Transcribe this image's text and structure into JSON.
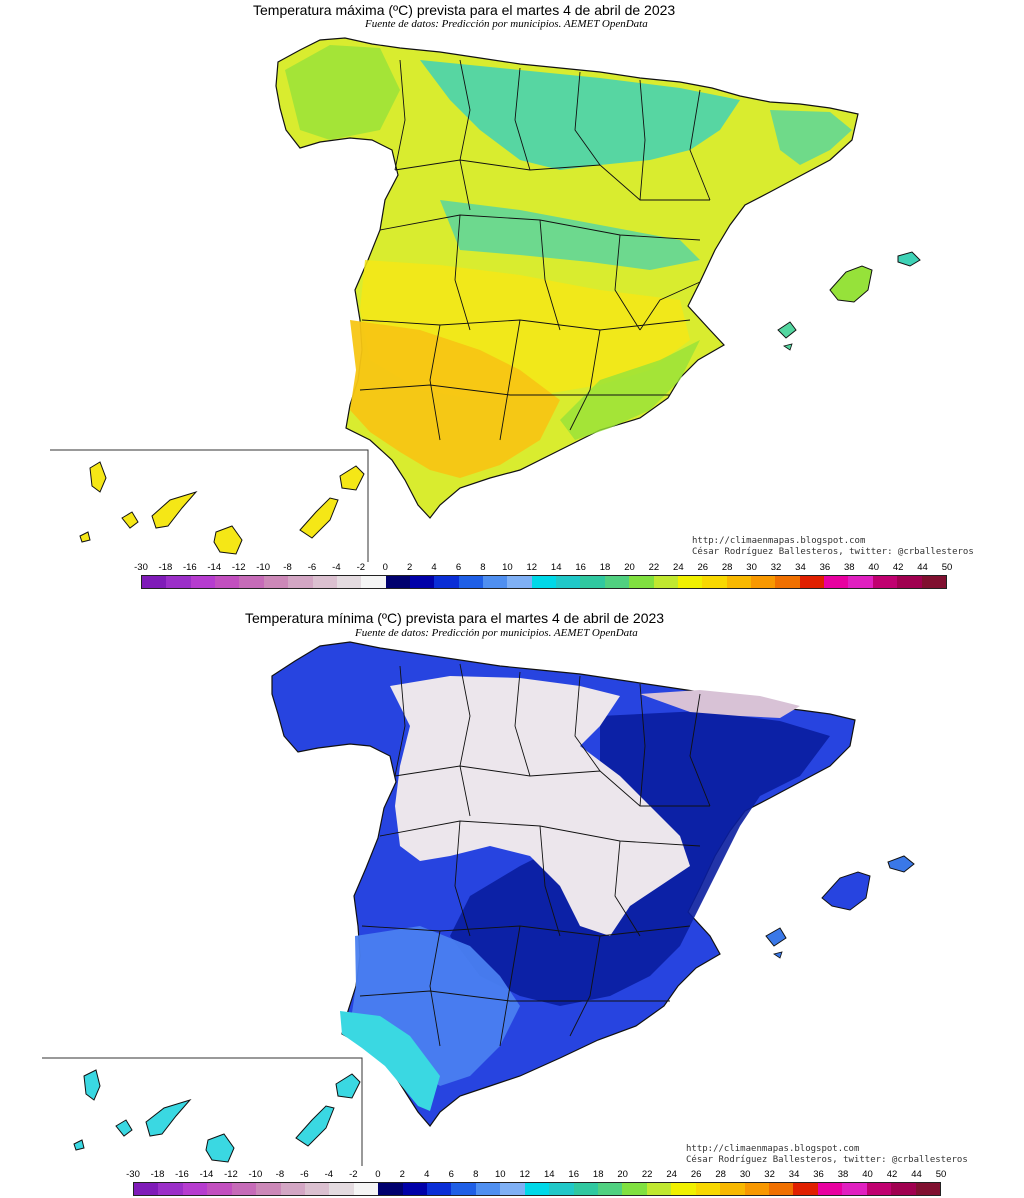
{
  "max_map": {
    "title": "Temperatura máxima (ºC) prevista para el martes 4 de abril de 2023",
    "source": "Fuente de datos: Predicción por municipios. AEMET OpenData",
    "credit_url": "http://climaenmapas.blogspot.com",
    "credit_author": "César Rodríguez Ballesteros, twitter: @crballesteros"
  },
  "min_map": {
    "title": "Temperatura mínima (ºC) prevista para el martes 4 de abril de 2023",
    "source": "Fuente de datos: Predicción por municipios. AEMET OpenData",
    "credit_url": "http://climaenmapas.blogspot.com",
    "credit_author": "César Rodríguez Ballesteros, twitter: @crballesteros"
  },
  "legend": {
    "labels": [
      "-30",
      "-18",
      "-16",
      "-14",
      "-12",
      "-10",
      "-8",
      "-6",
      "-4",
      "-2",
      "0",
      "2",
      "4",
      "6",
      "8",
      "10",
      "12",
      "14",
      "16",
      "18",
      "20",
      "22",
      "24",
      "26",
      "28",
      "30",
      "32",
      "34",
      "36",
      "38",
      "40",
      "42",
      "44",
      "50"
    ],
    "colors": [
      "#7f1bb8",
      "#9b2fc8",
      "#b63ccf",
      "#c24fbf",
      "#c66bb8",
      "#cc88b8",
      "#d3a6c4",
      "#dbc0d0",
      "#e4dbe0",
      "#f5f5f5",
      "#00006e",
      "#0000a8",
      "#0a2ed6",
      "#1f5fe6",
      "#4f8ff0",
      "#7fb0f5",
      "#00d8e8",
      "#20c8c8",
      "#30c8a0",
      "#50d080",
      "#80e040",
      "#c0e830",
      "#f0f000",
      "#f8d800",
      "#f8b800",
      "#f89800",
      "#f07000",
      "#e02000",
      "#e800a0",
      "#e020c0",
      "#c00070",
      "#a00050",
      "#801030"
    ]
  },
  "colors": {
    "max_land_main": "#d9ec2f",
    "max_land_teal": "#3fd2b6",
    "max_land_green": "#96e23a",
    "max_land_yellow": "#f5e716",
    "max_land_orange": "#f7c614",
    "min_land_blue": "#2744e0",
    "min_land_navy": "#0a1ea0",
    "min_land_light": "#4a7ff0",
    "min_land_cyan": "#3ad8e2",
    "min_land_white": "#ece6ec",
    "border": "#111111"
  }
}
